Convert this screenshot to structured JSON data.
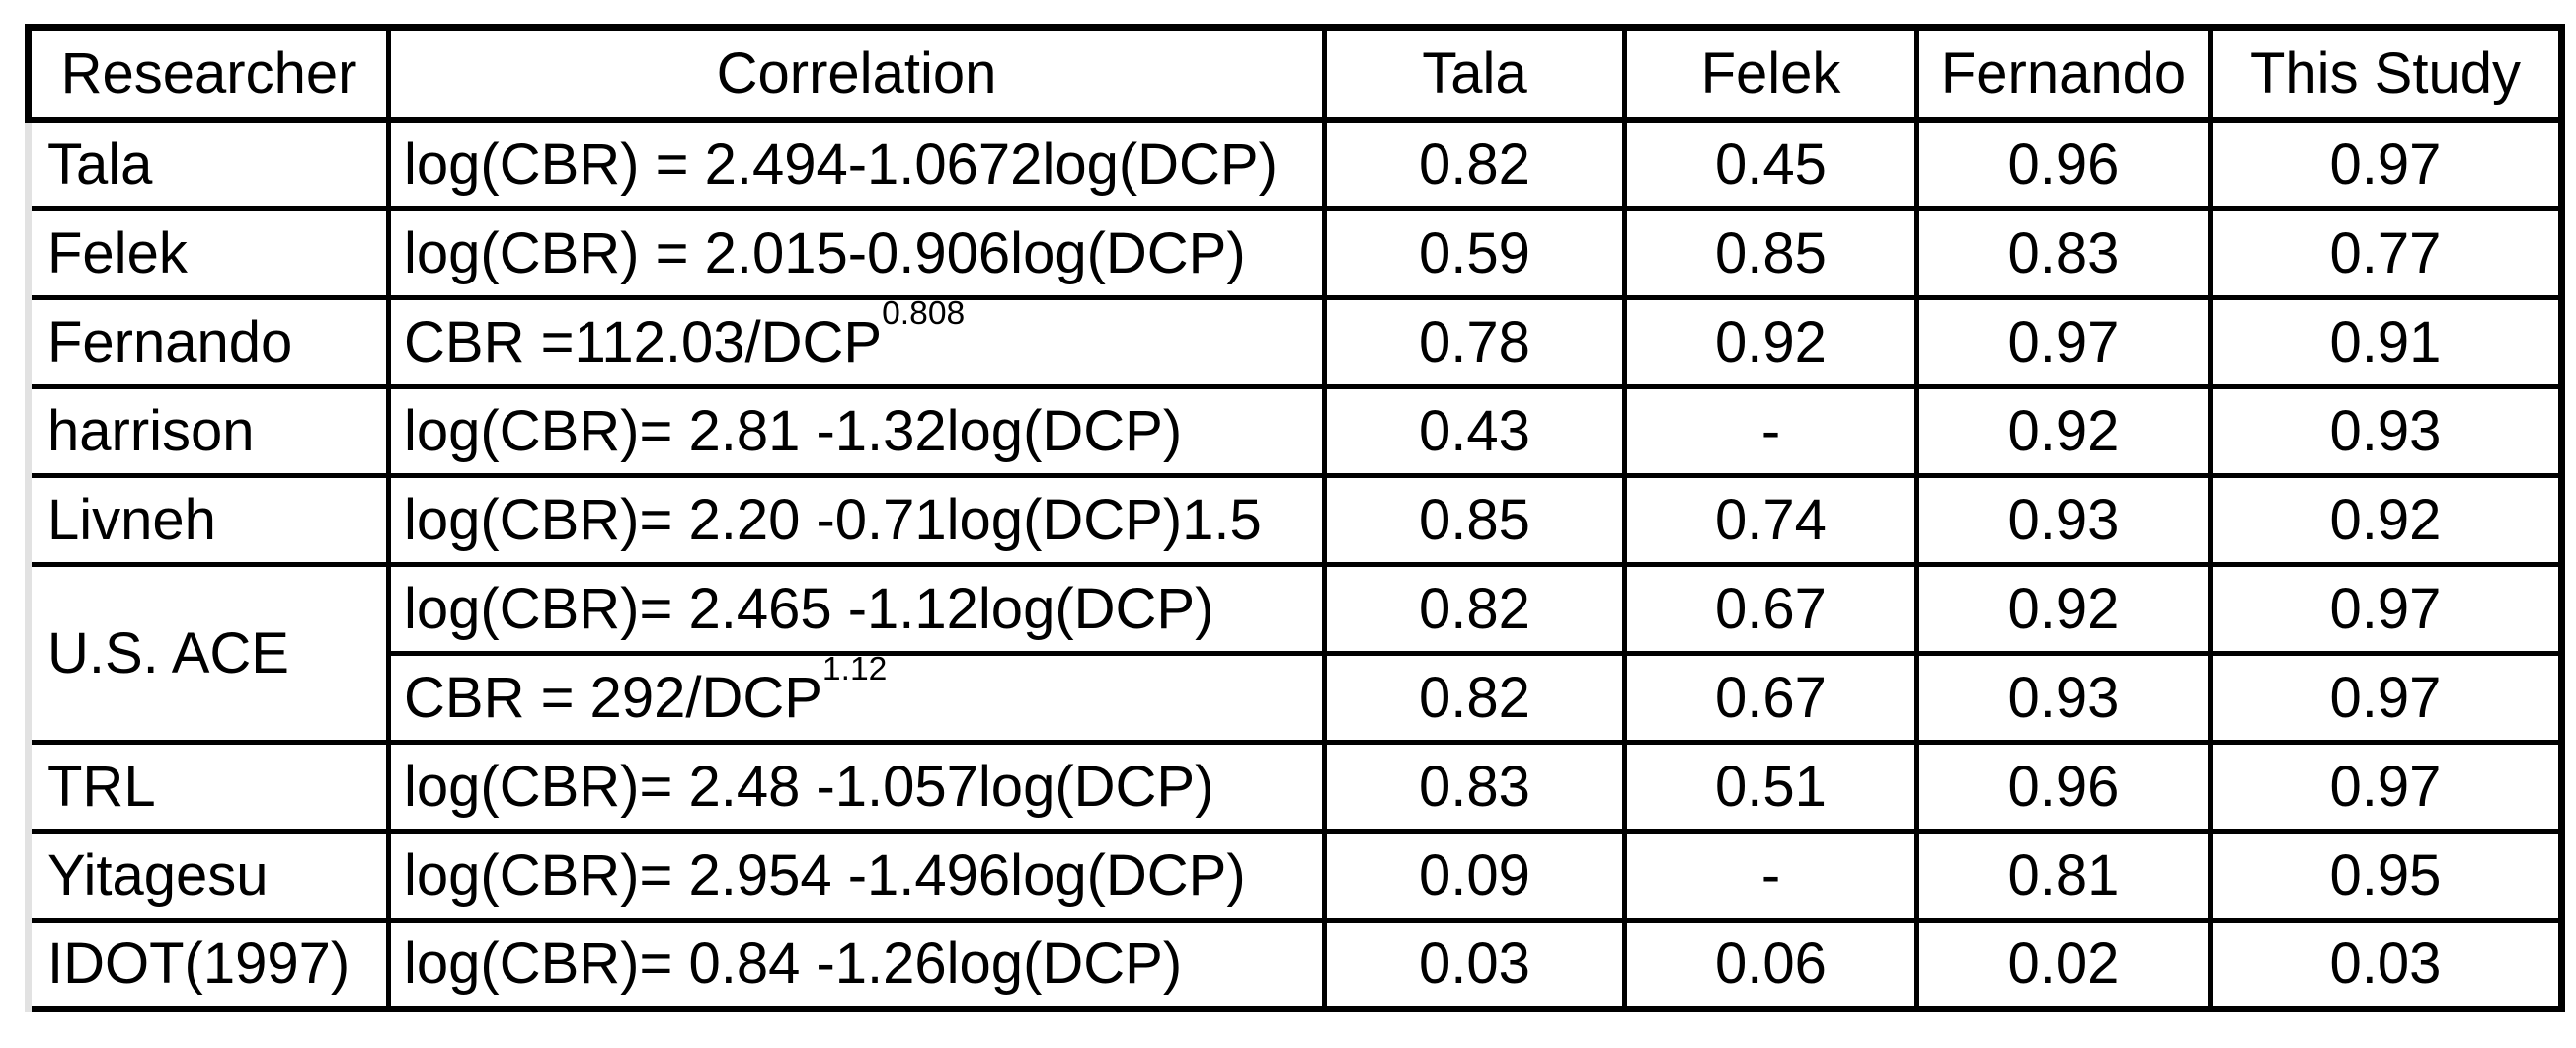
{
  "table": {
    "headers": [
      "Researcher",
      "Correlation",
      "Tala",
      "Felek",
      "Fernando",
      "This Study"
    ],
    "rows": [
      {
        "researcher": "Tala",
        "formula": {
          "text": "log(CBR) = 2.494-1.0672log(DCP)",
          "sup": ""
        },
        "values": [
          "0.82",
          "0.45",
          "0.96",
          "0.97"
        ]
      },
      {
        "researcher": "Felek",
        "formula": {
          "text": "log(CBR) = 2.015-0.906log(DCP)",
          "sup": ""
        },
        "values": [
          "0.59",
          "0.85",
          "0.83",
          "0.77"
        ]
      },
      {
        "researcher": "Fernando",
        "formula": {
          "text": "CBR =112.03/DCP",
          "sup": "0.808"
        },
        "values": [
          "0.78",
          "0.92",
          "0.97",
          "0.91"
        ]
      },
      {
        "researcher": "harrison",
        "formula": {
          "text": "log(CBR)= 2.81 -1.32log(DCP)",
          "sup": ""
        },
        "values": [
          "0.43",
          "-",
          "0.92",
          "0.93"
        ]
      },
      {
        "researcher": "Livneh",
        "formula": {
          "text": "log(CBR)= 2.20 -0.71log(DCP)1.5",
          "sup": ""
        },
        "values": [
          "0.85",
          "0.74",
          "0.93",
          "0.92"
        ]
      },
      {
        "researcher": "U.S. ACE",
        "formula": {
          "text": "log(CBR)= 2.465 -1.12log(DCP)",
          "sup": ""
        },
        "values": [
          "0.82",
          "0.67",
          "0.92",
          "0.97"
        ]
      },
      {
        "researcher": "",
        "formula": {
          "text": "CBR = 292/DCP",
          "sup": "1.12"
        },
        "values": [
          "0.82",
          "0.67",
          "0.93",
          "0.97"
        ]
      },
      {
        "researcher": "TRL",
        "formula": {
          "text": "log(CBR)= 2.48 -1.057log(DCP)",
          "sup": ""
        },
        "values": [
          "0.83",
          "0.51",
          "0.96",
          "0.97"
        ]
      },
      {
        "researcher": "Yitagesu",
        "formula": {
          "text": "log(CBR)= 2.954 -1.496log(DCP)",
          "sup": ""
        },
        "values": [
          "0.09",
          "-",
          "0.81",
          "0.95"
        ]
      },
      {
        "researcher": "IDOT(1997)",
        "formula": {
          "text": "log(CBR)= 0.84 -1.26log(DCP)",
          "sup": ""
        },
        "values": [
          "0.03",
          "0.06",
          "0.02",
          "0.03"
        ]
      }
    ]
  }
}
